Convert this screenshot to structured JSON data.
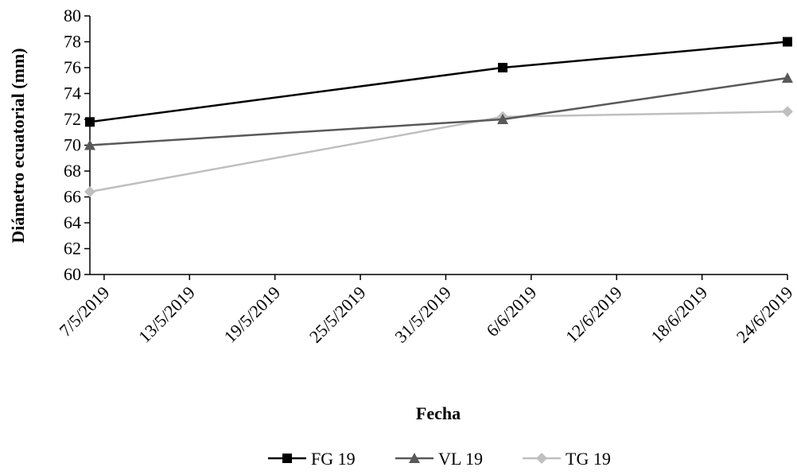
{
  "chart_data": {
    "type": "line",
    "title": "",
    "xlabel": "Fecha",
    "ylabel": "Diámetro ecuatorial (mm)",
    "ylim": [
      60,
      80
    ],
    "yticks": [
      "60",
      "62",
      "64",
      "66",
      "68",
      "70",
      "72",
      "74",
      "76",
      "78",
      "80"
    ],
    "xlim": [
      "2019-05-06",
      "2019-06-24"
    ],
    "xticks": [
      "7/5/2019",
      "13/5/2019",
      "19/5/2019",
      "25/5/2019",
      "31/5/2019",
      "6/6/2019",
      "12/6/2019",
      "18/6/2019",
      "24/6/2019"
    ],
    "grid": false,
    "legend_position": "bottom",
    "series": [
      {
        "name": "FG 19",
        "color": "#000000",
        "marker": "square",
        "x": [
          "2019-05-06",
          "2019-06-04",
          "2019-06-24"
        ],
        "y": [
          71.8,
          76.0,
          78.0
        ]
      },
      {
        "name": "VL 19",
        "color": "#595959",
        "marker": "triangle",
        "x": [
          "2019-05-06",
          "2019-06-04",
          "2019-06-24"
        ],
        "y": [
          70.0,
          72.0,
          75.2
        ]
      },
      {
        "name": "TG 19",
        "color": "#bfbfbf",
        "marker": "diamond",
        "x": [
          "2019-05-06",
          "2019-06-04",
          "2019-06-24"
        ],
        "y": [
          66.4,
          72.2,
          72.6
        ]
      }
    ]
  }
}
